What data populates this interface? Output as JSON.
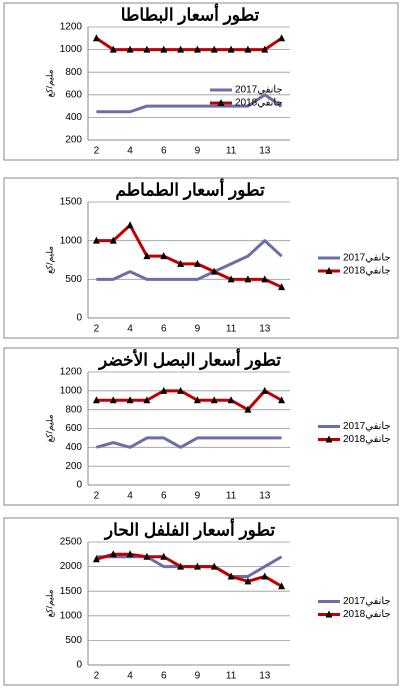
{
  "chart_data": [
    {
      "type": "line",
      "title": "تطور أسعار البطاطا",
      "ylabel": "مليم/كغ",
      "categories": [
        "2",
        null,
        "4",
        null,
        "6",
        null,
        "9",
        null,
        "11",
        null,
        "13",
        null
      ],
      "ylim": [
        200,
        1200
      ],
      "yticks": [
        200,
        400,
        600,
        800,
        1000,
        1200
      ],
      "grid": true,
      "legend": "inside",
      "series": [
        {
          "name": "جانفي2017",
          "color": "#6b6fa8",
          "marker": "none",
          "values": [
            450,
            450,
            450,
            500,
            500,
            500,
            500,
            500,
            500,
            500,
            600,
            500
          ]
        },
        {
          "name": "جانفي2018",
          "color": "#c00000",
          "marker": "triangle",
          "values": [
            1100,
            1000,
            1000,
            1000,
            1000,
            1000,
            1000,
            1000,
            1000,
            1000,
            1000,
            1100
          ]
        }
      ]
    },
    {
      "type": "line",
      "title": "تطور أسعار الطماطم",
      "ylabel": "مليم/كغ",
      "categories": [
        "2",
        null,
        "4",
        null,
        "6",
        null,
        "9",
        null,
        "11",
        null,
        "13",
        null
      ],
      "ylim": [
        0,
        1500
      ],
      "yticks": [
        0,
        500,
        1000,
        1500
      ],
      "grid": true,
      "legend": "right",
      "series": [
        {
          "name": "جانفي2017",
          "color": "#6b6fa8",
          "marker": "none",
          "values": [
            500,
            500,
            600,
            500,
            500,
            500,
            500,
            600,
            700,
            800,
            1000,
            800
          ]
        },
        {
          "name": "جانفي2018",
          "color": "#c00000",
          "marker": "triangle",
          "values": [
            1000,
            1000,
            1200,
            800,
            800,
            700,
            700,
            600,
            500,
            500,
            500,
            400
          ]
        }
      ]
    },
    {
      "type": "line",
      "title": "تطور أسعار البصل الأخضر",
      "ylabel": "مليم/كغ",
      "categories": [
        "2",
        null,
        "4",
        null,
        "6",
        null,
        "9",
        null,
        "11",
        null,
        "13",
        null
      ],
      "ylim": [
        0,
        1200
      ],
      "yticks": [
        0,
        200,
        400,
        600,
        800,
        1000,
        1200
      ],
      "grid": true,
      "legend": "right",
      "series": [
        {
          "name": "جانفي2017",
          "color": "#6b6fa8",
          "marker": "none",
          "values": [
            400,
            450,
            400,
            500,
            500,
            400,
            500,
            500,
            500,
            500,
            500,
            500
          ]
        },
        {
          "name": "جانفي2018",
          "color": "#c00000",
          "marker": "triangle",
          "values": [
            900,
            900,
            900,
            900,
            1000,
            1000,
            900,
            900,
            900,
            800,
            1000,
            900
          ]
        }
      ]
    },
    {
      "type": "line",
      "title": "تطور أسعار الفلفل الحار",
      "ylabel": "مليم/كغ",
      "categories": [
        "2",
        null,
        "4",
        null,
        "6",
        null,
        "9",
        null,
        "11",
        null,
        "13",
        null
      ],
      "ylim": [
        0,
        2500
      ],
      "yticks": [
        0,
        500,
        1000,
        1500,
        2000,
        2500
      ],
      "grid": true,
      "legend": "right",
      "series": [
        {
          "name": "جانفي2017",
          "color": "#6b6fa8",
          "marker": "none",
          "values": [
            2200,
            2200,
            2200,
            2200,
            2000,
            2000,
            2000,
            2000,
            1800,
            1800,
            2000,
            2200
          ]
        },
        {
          "name": "جانفي2018",
          "color": "#c00000",
          "marker": "triangle",
          "values": [
            2150,
            2250,
            2250,
            2200,
            2200,
            2000,
            2000,
            2000,
            1800,
            1700,
            1800,
            1600
          ]
        }
      ]
    }
  ]
}
